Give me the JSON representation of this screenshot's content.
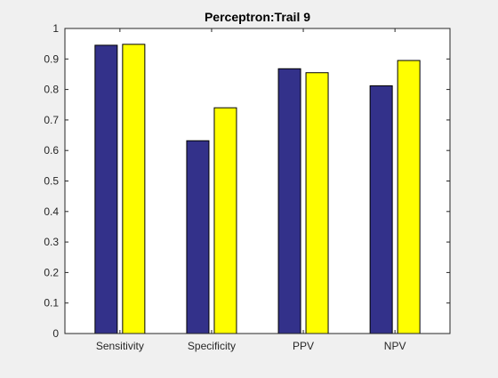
{
  "chart_data": {
    "type": "bar",
    "title": "Perceptron:Trail 9",
    "xlabel": "",
    "ylabel": "",
    "categories": [
      "Sensitivity",
      "Specificity",
      "PPV",
      "NPV"
    ],
    "series": [
      {
        "values": [
          0.945,
          0.632,
          0.868,
          0.812
        ],
        "color": "#33318a"
      },
      {
        "values": [
          0.948,
          0.74,
          0.855,
          0.895
        ],
        "color": "#ffff00"
      }
    ],
    "ylim": [
      0,
      1
    ],
    "yticks": [
      "0",
      "0.1",
      "0.2",
      "0.3",
      "0.4",
      "0.5",
      "0.6",
      "0.7",
      "0.8",
      "0.9",
      "1"
    ],
    "grid": false,
    "legend": "none"
  }
}
